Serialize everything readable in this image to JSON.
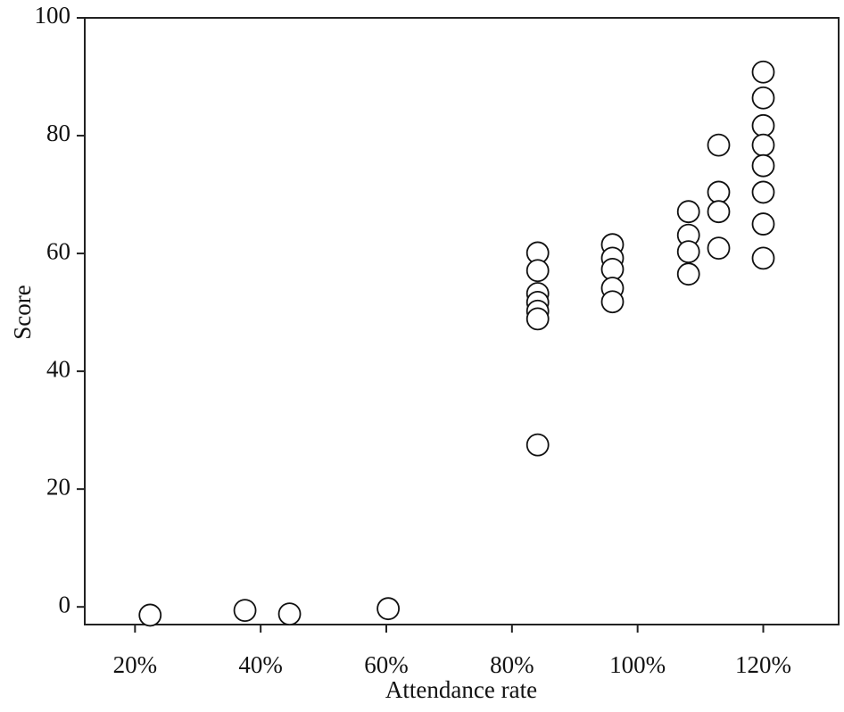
{
  "chart_data": {
    "type": "scatter",
    "x_label": "Attendance rate",
    "y_label": "Score",
    "x": [
      22.4,
      37.5,
      44.6,
      60.3,
      84.1,
      84.1,
      84.1,
      84.1,
      84.1,
      84.1,
      84.1,
      96,
      96,
      96,
      96,
      96,
      108.1,
      108.1,
      108.1,
      108.1,
      112.9,
      112.9,
      112.9,
      112.9,
      120,
      120,
      120,
      120,
      120,
      120,
      120,
      120
    ],
    "values": [
      -1.4,
      -0.6,
      -1.2,
      -0.3,
      60.1,
      57.1,
      53.2,
      51.7,
      50.2,
      48.9,
      27.5,
      61.5,
      59.2,
      57.3,
      54.1,
      51.8,
      67.1,
      63.1,
      60.3,
      56.5,
      78.4,
      70.4,
      67.1,
      60.9,
      90.8,
      86.4,
      81.7,
      78.4,
      74.9,
      70.4,
      65.0,
      59.2
    ],
    "color": "#ffffff",
    "xlim": [
      12,
      132
    ],
    "ylim": [
      -3,
      100
    ],
    "xticks": [
      {
        "value": 20,
        "label": "20%"
      },
      {
        "value": 40,
        "label": "40%"
      },
      {
        "value": 60,
        "label": "60%"
      },
      {
        "value": 80,
        "label": "80%"
      },
      {
        "value": 100,
        "label": "100%"
      },
      {
        "value": 120,
        "label": "120%"
      }
    ],
    "yticks": [
      0,
      20,
      40,
      60,
      80,
      100
    ]
  }
}
